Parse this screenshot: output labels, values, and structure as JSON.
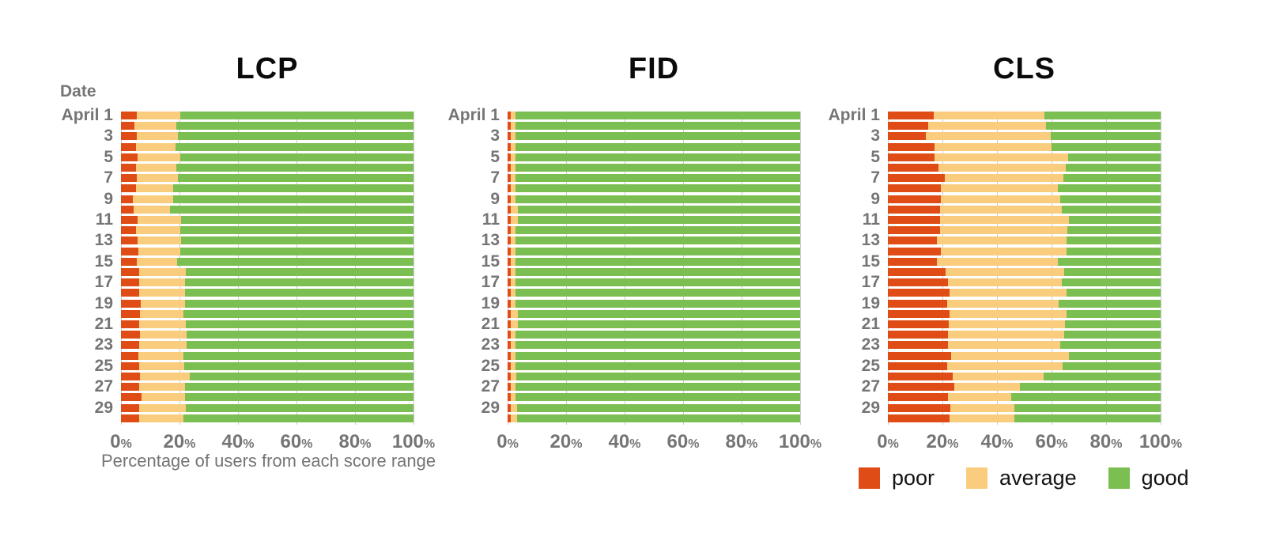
{
  "date_header": "Date",
  "colors": {
    "poor": "#E04C15",
    "average": "#FACD7E",
    "good": "#7BBE52",
    "gridline": "#CBCBCB",
    "axis_text": "#757575",
    "title_text": "#0B0B0B",
    "legend_text": "#141414"
  },
  "legend": {
    "items": [
      {
        "label": "poor",
        "color": "#E04C15"
      },
      {
        "label": "average",
        "color": "#FACD7E"
      },
      {
        "label": "good",
        "color": "#7BBE52"
      }
    ]
  },
  "chart_data": [
    {
      "id": "lcp",
      "type": "stacked_bar_100_horizontal",
      "title": "LCP",
      "xlabel": "Percentage of users from each score range",
      "x_ticks": [
        0,
        20,
        40,
        60,
        80,
        100
      ],
      "x_tick_suffix": "%",
      "x_range": [
        0,
        100
      ],
      "num_rows": 30,
      "row_labels_visible": [
        "April 1",
        "3",
        "5",
        "7",
        "9",
        "11",
        "13",
        "15",
        "17",
        "19",
        "21",
        "23",
        "25",
        "27",
        "29"
      ],
      "series": [
        {
          "name": "poor",
          "values": [
            5.4,
            4.5,
            5.4,
            5.2,
            5.6,
            5.2,
            5.4,
            5.2,
            4.1,
            4.3,
            5.6,
            5.2,
            5.7,
            5.9,
            5.4,
            6.3,
            6.1,
            6.1,
            6.8,
            6.4,
            6.3,
            6.6,
            6.3,
            5.9,
            6.1,
            6.6,
            6.3,
            7.0,
            6.3,
            6.1
          ]
        },
        {
          "name": "average",
          "values": [
            14.9,
            14.4,
            14.1,
            13.5,
            14.8,
            13.8,
            14.1,
            12.7,
            13.7,
            12.5,
            14.9,
            15.1,
            14.9,
            14.5,
            13.7,
            16.0,
            15.8,
            15.8,
            15.1,
            14.9,
            15.8,
            15.8,
            16.1,
            15.4,
            15.4,
            16.9,
            15.6,
            14.9,
            15.8,
            15.2
          ]
        },
        {
          "name": "good",
          "values": [
            79.7,
            81.1,
            80.5,
            81.3,
            79.6,
            81.0,
            80.5,
            82.1,
            82.2,
            83.2,
            79.5,
            79.7,
            79.4,
            79.6,
            80.9,
            77.7,
            78.1,
            78.1,
            78.1,
            78.7,
            77.9,
            77.6,
            77.6,
            78.7,
            78.5,
            76.5,
            78.1,
            78.1,
            77.9,
            78.7
          ]
        }
      ]
    },
    {
      "id": "fid",
      "type": "stacked_bar_100_horizontal",
      "title": "FID",
      "xlabel": "",
      "x_ticks": [
        0,
        20,
        40,
        60,
        80,
        100
      ],
      "x_tick_suffix": "%",
      "x_range": [
        0,
        100
      ],
      "num_rows": 30,
      "row_labels_visible": [
        "April 1",
        "3",
        "5",
        "7",
        "9",
        "11",
        "13",
        "15",
        "17",
        "19",
        "21",
        "23",
        "25",
        "27",
        "29"
      ],
      "series": [
        {
          "name": "poor",
          "values": [
            1.2,
            1.2,
            1.2,
            1.2,
            1.2,
            1.2,
            1.2,
            1.2,
            1.2,
            1.2,
            1.2,
            1.2,
            1.2,
            1.2,
            1.2,
            1.2,
            1.2,
            1.2,
            1.2,
            1.2,
            1.2,
            1.2,
            1.2,
            1.2,
            1.2,
            1.2,
            1.2,
            1.2,
            1.2,
            1.2
          ]
        },
        {
          "name": "average",
          "values": [
            1.5,
            1.5,
            1.5,
            1.5,
            1.5,
            1.5,
            1.5,
            1.5,
            1.5,
            2.2,
            2.2,
            1.5,
            1.5,
            1.5,
            1.5,
            1.5,
            1.5,
            1.5,
            1.5,
            2.2,
            2.2,
            1.5,
            1.5,
            1.5,
            1.5,
            1.8,
            1.5,
            1.5,
            2.0,
            2.0
          ]
        },
        {
          "name": "good",
          "values": [
            97.3,
            97.3,
            97.3,
            97.3,
            97.3,
            97.3,
            97.3,
            97.3,
            97.3,
            96.6,
            96.6,
            97.3,
            97.3,
            97.3,
            97.3,
            97.3,
            97.3,
            97.3,
            97.3,
            96.6,
            96.6,
            97.3,
            97.3,
            97.3,
            97.3,
            97.0,
            97.3,
            97.3,
            96.8,
            96.8
          ]
        }
      ]
    },
    {
      "id": "cls",
      "type": "stacked_bar_100_horizontal",
      "title": "CLS",
      "xlabel": "",
      "x_ticks": [
        0,
        20,
        40,
        60,
        80,
        100
      ],
      "x_tick_suffix": "%",
      "x_range": [
        0,
        100
      ],
      "num_rows": 30,
      "row_labels_visible": [
        "April 1",
        "3",
        "5",
        "7",
        "9",
        "11",
        "13",
        "15",
        "17",
        "19",
        "21",
        "23",
        "25",
        "27",
        "29"
      ],
      "series": [
        {
          "name": "poor",
          "values": [
            16.8,
            14.7,
            13.9,
            17.1,
            17.0,
            18.6,
            20.9,
            19.4,
            19.4,
            19.0,
            19.0,
            19.0,
            18.0,
            19.5,
            18.0,
            21.2,
            22.1,
            22.7,
            21.7,
            22.5,
            22.2,
            22.1,
            21.9,
            23.2,
            21.7,
            23.8,
            24.3,
            21.9,
            22.9,
            22.5
          ]
        },
        {
          "name": "average",
          "values": [
            40.7,
            43.2,
            45.7,
            42.9,
            49.0,
            46.6,
            43.5,
            42.8,
            43.7,
            44.7,
            47.5,
            46.8,
            47.4,
            46.1,
            44.3,
            43.4,
            41.8,
            42.9,
            40.8,
            43.1,
            42.6,
            42.5,
            41.3,
            43.1,
            42.4,
            33.2,
            24.0,
            23.2,
            23.4,
            23.9
          ]
        },
        {
          "name": "good",
          "values": [
            42.5,
            42.1,
            40.4,
            40.0,
            34.0,
            34.8,
            35.6,
            37.8,
            36.9,
            36.3,
            33.5,
            34.2,
            34.6,
            34.4,
            37.7,
            35.4,
            36.1,
            34.4,
            37.5,
            34.4,
            35.2,
            35.4,
            36.8,
            33.7,
            35.9,
            43.0,
            51.7,
            54.9,
            53.7,
            53.6
          ]
        }
      ]
    }
  ]
}
